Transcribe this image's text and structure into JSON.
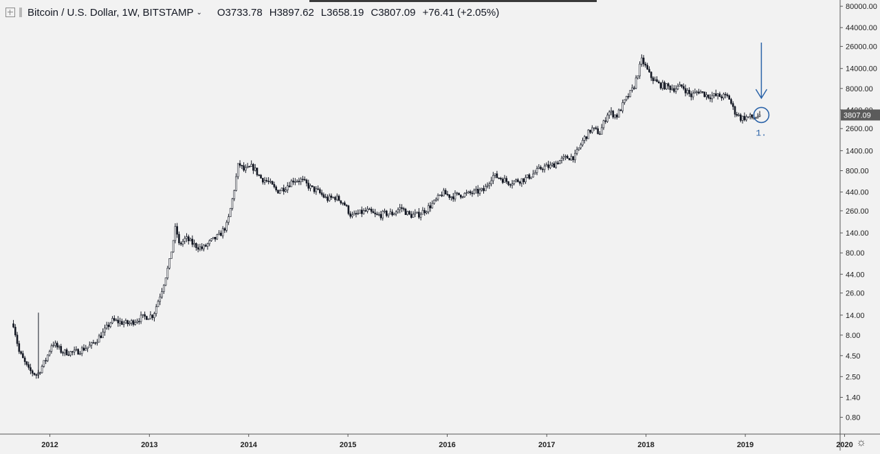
{
  "header": {
    "symbol": "Bitcoin / U.S. Dollar, 1W, BITSTAMP",
    "open": "O3733.78",
    "high": "H3897.62",
    "low": "L3658.19",
    "close": "C3807.09",
    "change": "+76.41 (+2.05%)"
  },
  "colors": {
    "background": "#f2f2f2",
    "candle": "#131722",
    "annotation": "#2962a8",
    "price_badge": "#5b5b5b"
  },
  "icons": {
    "settings": "gear-icon",
    "expand": "plus-square-icon"
  },
  "chart_data": {
    "type": "candlestick",
    "title": "Bitcoin / U.S. Dollar, 1W, BITSTAMP",
    "y_scale": "log",
    "y_ticks": [
      "80000.00",
      "44000.00",
      "26000.00",
      "14000.00",
      "8000.00",
      "4400.00",
      "2600.00",
      "1400.00",
      "800.00",
      "440.00",
      "260.00",
      "140.00",
      "80.00",
      "44.00",
      "26.00",
      "14.00",
      "8.00",
      "4.50",
      "2.50",
      "1.40",
      "0.80"
    ],
    "x_ticks": [
      "2012",
      "2013",
      "2014",
      "2015",
      "2016",
      "2017",
      "2018",
      "2019",
      "2020"
    ],
    "last_price_label": "3807.09",
    "last_price": 3807.09,
    "annotation_label": "1.",
    "xlim": [
      "2011-08-01",
      "2020-01-15"
    ],
    "ylim": [
      0.5,
      90000
    ],
    "series": [
      {
        "values": [
          [
            "2011-08-20",
            11
          ],
          [
            "2011-09-10",
            5
          ],
          [
            "2011-10-15",
            3
          ],
          [
            "2011-11-15",
            2.6
          ],
          [
            "2011-12-20",
            4.2
          ],
          [
            "2012-01-10",
            6.5
          ],
          [
            "2012-02-15",
            5
          ],
          [
            "2012-04-01",
            4.9
          ],
          [
            "2012-06-01",
            6
          ],
          [
            "2012-07-15",
            8.5
          ],
          [
            "2012-08-15",
            12
          ],
          [
            "2012-09-15",
            11.5
          ],
          [
            "2012-10-15",
            11
          ],
          [
            "2012-12-01",
            13
          ],
          [
            "2013-01-15",
            14
          ],
          [
            "2013-02-15",
            28
          ],
          [
            "2013-03-15",
            60
          ],
          [
            "2013-04-08",
            170
          ],
          [
            "2013-04-20",
            100
          ],
          [
            "2013-05-15",
            120
          ],
          [
            "2013-06-15",
            100
          ],
          [
            "2013-07-15",
            90
          ],
          [
            "2013-08-15",
            110
          ],
          [
            "2013-09-15",
            130
          ],
          [
            "2013-10-15",
            180
          ],
          [
            "2013-11-05",
            400
          ],
          [
            "2013-11-25",
            1000
          ],
          [
            "2013-12-15",
            800
          ],
          [
            "2014-01-15",
            900
          ],
          [
            "2014-02-15",
            650
          ],
          [
            "2014-03-15",
            580
          ],
          [
            "2014-04-15",
            450
          ],
          [
            "2014-05-15",
            500
          ],
          [
            "2014-06-15",
            620
          ],
          [
            "2014-07-15",
            610
          ],
          [
            "2014-08-15",
            500
          ],
          [
            "2014-09-15",
            440
          ],
          [
            "2014-10-15",
            360
          ],
          [
            "2014-11-15",
            380
          ],
          [
            "2014-12-15",
            330
          ],
          [
            "2015-01-15",
            220
          ],
          [
            "2015-02-15",
            245
          ],
          [
            "2015-03-15",
            260
          ],
          [
            "2015-04-15",
            225
          ],
          [
            "2015-05-15",
            240
          ],
          [
            "2015-06-15",
            240
          ],
          [
            "2015-07-15",
            285
          ],
          [
            "2015-08-15",
            230
          ],
          [
            "2015-09-15",
            232
          ],
          [
            "2015-10-15",
            270
          ],
          [
            "2015-11-15",
            330
          ],
          [
            "2015-12-15",
            430
          ],
          [
            "2016-01-15",
            390
          ],
          [
            "2016-02-15",
            410
          ],
          [
            "2016-03-15",
            415
          ],
          [
            "2016-04-15",
            440
          ],
          [
            "2016-05-15",
            460
          ],
          [
            "2016-06-15",
            700
          ],
          [
            "2016-07-15",
            650
          ],
          [
            "2016-08-15",
            575
          ],
          [
            "2016-09-15",
            605
          ],
          [
            "2016-10-15",
            640
          ],
          [
            "2016-11-15",
            740
          ],
          [
            "2016-12-15",
            880
          ],
          [
            "2017-01-15",
            900
          ],
          [
            "2017-02-15",
            1050
          ],
          [
            "2017-03-15",
            1150
          ],
          [
            "2017-04-15",
            1200
          ],
          [
            "2017-05-15",
            1900
          ],
          [
            "2017-06-15",
            2600
          ],
          [
            "2017-07-15",
            2300
          ],
          [
            "2017-08-15",
            4200
          ],
          [
            "2017-09-15",
            3700
          ],
          [
            "2017-10-15",
            5600
          ],
          [
            "2017-11-15",
            8000
          ],
          [
            "2017-12-17",
            18000
          ],
          [
            "2018-01-15",
            11500
          ],
          [
            "2018-02-15",
            9000
          ],
          [
            "2018-03-15",
            8500
          ],
          [
            "2018-04-15",
            8000
          ],
          [
            "2018-05-15",
            8500
          ],
          [
            "2018-06-15",
            6500
          ],
          [
            "2018-07-15",
            7500
          ],
          [
            "2018-08-15",
            6500
          ],
          [
            "2018-09-15",
            6500
          ],
          [
            "2018-10-15",
            6400
          ],
          [
            "2018-11-01",
            6300
          ],
          [
            "2018-11-20",
            4300
          ],
          [
            "2018-12-15",
            3500
          ],
          [
            "2019-01-15",
            3600
          ],
          [
            "2019-02-01",
            3500
          ],
          [
            "2019-02-15",
            3700
          ],
          [
            "2019-02-24",
            3807.09
          ]
        ]
      }
    ]
  }
}
